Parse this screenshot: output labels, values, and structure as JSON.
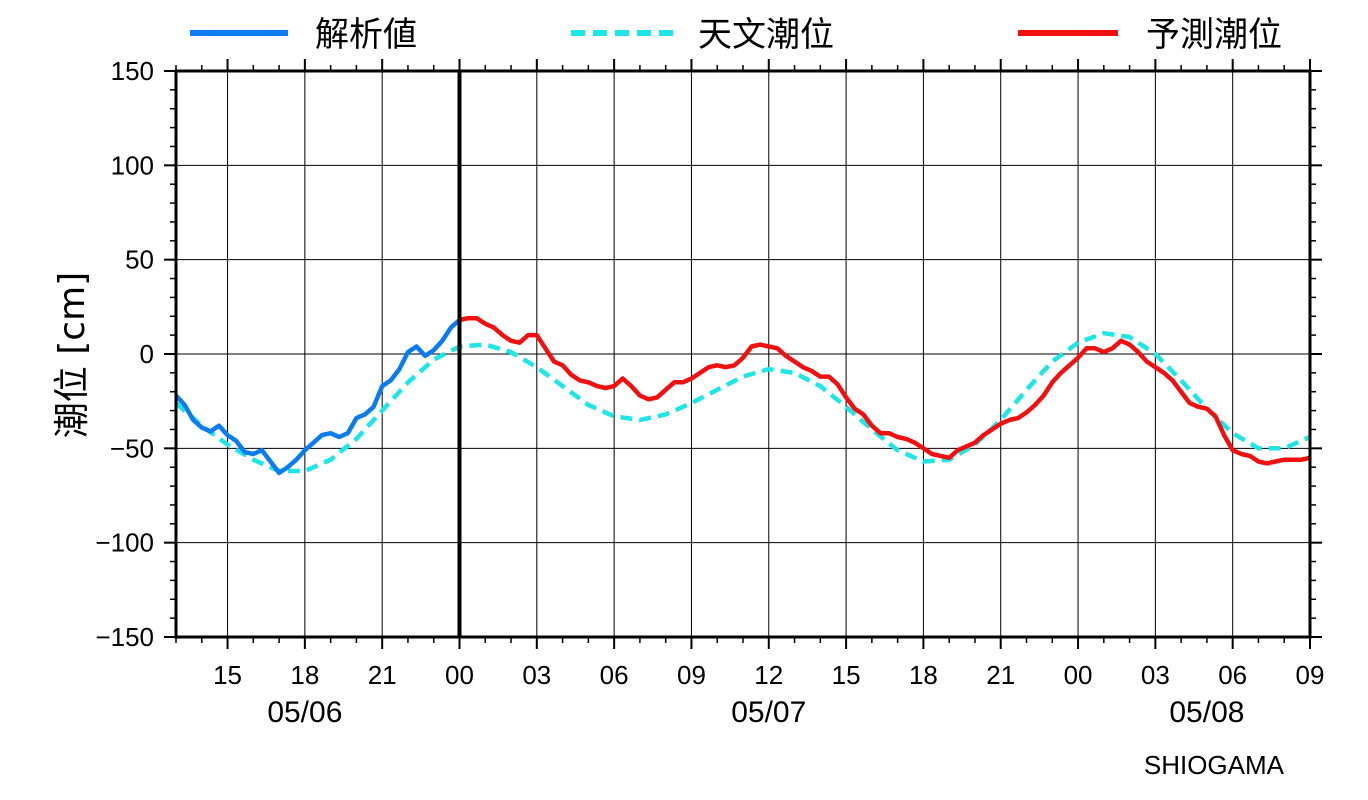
{
  "chart_data": {
    "type": "line",
    "ylabel": "潮位 [cm]",
    "ylim": [
      -150,
      150
    ],
    "y_ticks": [
      -150,
      -100,
      -50,
      0,
      50,
      100,
      150
    ],
    "y_tick_labels": [
      "−150",
      "−100",
      "−50",
      "0",
      "50",
      "100",
      "150"
    ],
    "xlim": [
      "05/06 13:00",
      "05/08 09:00"
    ],
    "x_tick_labels": [
      {
        "x": "05/06 15:00",
        "label": "15"
      },
      {
        "x": "05/06 18:00",
        "label": "18"
      },
      {
        "x": "05/06 21:00",
        "label": "21"
      },
      {
        "x": "05/07 00:00",
        "label": "00"
      },
      {
        "x": "05/07 03:00",
        "label": "03"
      },
      {
        "x": "05/07 06:00",
        "label": "06"
      },
      {
        "x": "05/07 09:00",
        "label": "09"
      },
      {
        "x": "05/07 12:00",
        "label": "12"
      },
      {
        "x": "05/07 15:00",
        "label": "15"
      },
      {
        "x": "05/07 18:00",
        "label": "18"
      },
      {
        "x": "05/07 21:00",
        "label": "21"
      },
      {
        "x": "05/08 00:00",
        "label": "00"
      },
      {
        "x": "05/08 03:00",
        "label": "03"
      },
      {
        "x": "05/08 06:00",
        "label": "06"
      },
      {
        "x": "05/08 09:00",
        "label": "09"
      }
    ],
    "date_labels": [
      {
        "x": "05/06 18:00",
        "label": "05/06"
      },
      {
        "x": "05/07 12:00",
        "label": "05/07"
      },
      {
        "x": "05/08 05:00",
        "label": "05/08"
      }
    ],
    "now_marker": "05/07 00:00",
    "grid": true,
    "legend_position": "top",
    "station": "SHIOGAMA",
    "series": [
      {
        "name": "解析値",
        "color": "#0a7cf0",
        "dash": "solid",
        "points": [
          [
            "05/06 13:00",
            -22
          ],
          [
            "05/06 13:20",
            -27
          ],
          [
            "05/06 13:40",
            -35
          ],
          [
            "05/06 14:00",
            -39
          ],
          [
            "05/06 14:20",
            -41
          ],
          [
            "05/06 14:40",
            -38
          ],
          [
            "05/06 15:00",
            -43
          ],
          [
            "05/06 15:20",
            -46
          ],
          [
            "05/06 15:40",
            -52
          ],
          [
            "05/06 16:00",
            -53
          ],
          [
            "05/06 16:20",
            -51
          ],
          [
            "05/06 16:40",
            -57
          ],
          [
            "05/06 17:00",
            -63
          ],
          [
            "05/06 17:20",
            -60
          ],
          [
            "05/06 17:40",
            -56
          ],
          [
            "05/06 18:00",
            -51
          ],
          [
            "05/06 18:20",
            -47
          ],
          [
            "05/06 18:40",
            -43
          ],
          [
            "05/06 19:00",
            -42
          ],
          [
            "05/06 19:20",
            -44
          ],
          [
            "05/06 19:40",
            -42
          ],
          [
            "05/06 20:00",
            -34
          ],
          [
            "05/06 20:20",
            -32
          ],
          [
            "05/06 20:40",
            -28
          ],
          [
            "05/06 21:00",
            -17
          ],
          [
            "05/06 21:20",
            -14
          ],
          [
            "05/06 21:40",
            -8
          ],
          [
            "05/06 22:00",
            1
          ],
          [
            "05/06 22:20",
            4
          ],
          [
            "05/06 22:40",
            -1
          ],
          [
            "05/06 23:00",
            2
          ],
          [
            "05/06 23:20",
            7
          ],
          [
            "05/06 23:40",
            14
          ],
          [
            "05/07 00:00",
            18
          ]
        ]
      },
      {
        "name": "天文潮位",
        "color": "#1ee6e6",
        "dash": "dashed",
        "points": [
          [
            "05/06 13:00",
            -26
          ],
          [
            "05/06 14:00",
            -38
          ],
          [
            "05/06 15:00",
            -48
          ],
          [
            "05/06 16:00",
            -56
          ],
          [
            "05/06 17:00",
            -62
          ],
          [
            "05/06 18:00",
            -62
          ],
          [
            "05/06 19:00",
            -56
          ],
          [
            "05/06 20:00",
            -45
          ],
          [
            "05/06 21:00",
            -30
          ],
          [
            "05/06 22:00",
            -15
          ],
          [
            "05/06 23:00",
            -3
          ],
          [
            "05/07 00:00",
            4
          ],
          [
            "05/07 01:00",
            5
          ],
          [
            "05/07 02:00",
            1
          ],
          [
            "05/07 03:00",
            -7
          ],
          [
            "05/07 04:00",
            -17
          ],
          [
            "05/07 05:00",
            -27
          ],
          [
            "05/07 06:00",
            -33
          ],
          [
            "05/07 07:00",
            -35
          ],
          [
            "05/07 08:00",
            -32
          ],
          [
            "05/07 09:00",
            -26
          ],
          [
            "05/07 10:00",
            -19
          ],
          [
            "05/07 11:00",
            -12
          ],
          [
            "05/07 12:00",
            -8
          ],
          [
            "05/07 13:00",
            -10
          ],
          [
            "05/07 14:00",
            -17
          ],
          [
            "05/07 15:00",
            -28
          ],
          [
            "05/07 16:00",
            -40
          ],
          [
            "05/07 17:00",
            -51
          ],
          [
            "05/07 18:00",
            -57
          ],
          [
            "05/07 19:00",
            -56
          ],
          [
            "05/07 20:00",
            -48
          ],
          [
            "05/07 21:00",
            -35
          ],
          [
            "05/07 22:00",
            -19
          ],
          [
            "05/07 23:00",
            -4
          ],
          [
            "05/08 00:00",
            6
          ],
          [
            "05/08 01:00",
            11
          ],
          [
            "05/08 02:00",
            9
          ],
          [
            "05/08 03:00",
            0
          ],
          [
            "05/08 04:00",
            -14
          ],
          [
            "05/08 05:00",
            -29
          ],
          [
            "05/08 06:00",
            -42
          ],
          [
            "05/08 07:00",
            -50
          ],
          [
            "05/08 08:00",
            -50
          ],
          [
            "05/08 09:00",
            -44
          ]
        ]
      },
      {
        "name": "予測潮位",
        "color": "#f01010",
        "dash": "solid",
        "points": [
          [
            "05/07 00:00",
            18
          ],
          [
            "05/07 00:20",
            19
          ],
          [
            "05/07 00:40",
            19
          ],
          [
            "05/07 01:00",
            16
          ],
          [
            "05/07 01:20",
            14
          ],
          [
            "05/07 01:40",
            10
          ],
          [
            "05/07 02:00",
            7
          ],
          [
            "05/07 02:20",
            6
          ],
          [
            "05/07 02:40",
            10
          ],
          [
            "05/07 03:00",
            10
          ],
          [
            "05/07 03:20",
            3
          ],
          [
            "05/07 03:40",
            -4
          ],
          [
            "05/07 04:00",
            -6
          ],
          [
            "05/07 04:20",
            -11
          ],
          [
            "05/07 04:40",
            -14
          ],
          [
            "05/07 05:00",
            -15
          ],
          [
            "05/07 05:20",
            -17
          ],
          [
            "05/07 05:40",
            -18
          ],
          [
            "05/07 06:00",
            -17
          ],
          [
            "05/07 06:20",
            -13
          ],
          [
            "05/07 06:40",
            -17
          ],
          [
            "05/07 07:00",
            -22
          ],
          [
            "05/07 07:20",
            -24
          ],
          [
            "05/07 07:40",
            -23
          ],
          [
            "05/07 08:00",
            -19
          ],
          [
            "05/07 08:20",
            -15
          ],
          [
            "05/07 08:40",
            -15
          ],
          [
            "05/07 09:00",
            -13
          ],
          [
            "05/07 09:20",
            -10
          ],
          [
            "05/07 09:40",
            -7
          ],
          [
            "05/07 10:00",
            -6
          ],
          [
            "05/07 10:20",
            -7
          ],
          [
            "05/07 10:40",
            -6
          ],
          [
            "05/07 11:00",
            -2
          ],
          [
            "05/07 11:20",
            4
          ],
          [
            "05/07 11:40",
            5
          ],
          [
            "05/07 12:00",
            4
          ],
          [
            "05/07 12:20",
            3
          ],
          [
            "05/07 12:40",
            -1
          ],
          [
            "05/07 13:00",
            -4
          ],
          [
            "05/07 13:20",
            -7
          ],
          [
            "05/07 13:40",
            -9
          ],
          [
            "05/07 14:00",
            -12
          ],
          [
            "05/07 14:20",
            -12
          ],
          [
            "05/07 14:40",
            -16
          ],
          [
            "05/07 15:00",
            -23
          ],
          [
            "05/07 15:20",
            -29
          ],
          [
            "05/07 15:40",
            -32
          ],
          [
            "05/07 16:00",
            -38
          ],
          [
            "05/07 16:20",
            -42
          ],
          [
            "05/07 16:40",
            -42
          ],
          [
            "05/07 17:00",
            -44
          ],
          [
            "05/07 17:20",
            -45
          ],
          [
            "05/07 17:40",
            -47
          ],
          [
            "05/07 18:00",
            -50
          ],
          [
            "05/07 18:20",
            -53
          ],
          [
            "05/07 18:40",
            -54
          ],
          [
            "05/07 19:00",
            -55
          ],
          [
            "05/07 19:20",
            -51
          ],
          [
            "05/07 19:40",
            -49
          ],
          [
            "05/07 20:00",
            -47
          ],
          [
            "05/07 20:20",
            -43
          ],
          [
            "05/07 20:40",
            -40
          ],
          [
            "05/07 21:00",
            -37
          ],
          [
            "05/07 21:20",
            -35
          ],
          [
            "05/07 21:40",
            -34
          ],
          [
            "05/07 22:00",
            -31
          ],
          [
            "05/07 22:20",
            -27
          ],
          [
            "05/07 22:40",
            -22
          ],
          [
            "05/07 23:00",
            -15
          ],
          [
            "05/07 23:20",
            -10
          ],
          [
            "05/07 23:40",
            -6
          ],
          [
            "05/08 00:00",
            -2
          ],
          [
            "05/08 00:20",
            3
          ],
          [
            "05/08 00:40",
            3
          ],
          [
            "05/08 01:00",
            1
          ],
          [
            "05/08 01:20",
            3
          ],
          [
            "05/08 01:40",
            7
          ],
          [
            "05/08 02:00",
            5
          ],
          [
            "05/08 02:20",
            1
          ],
          [
            "05/08 02:40",
            -4
          ],
          [
            "05/08 03:00",
            -7
          ],
          [
            "05/08 03:20",
            -10
          ],
          [
            "05/08 03:40",
            -14
          ],
          [
            "05/08 04:00",
            -20
          ],
          [
            "05/08 04:20",
            -26
          ],
          [
            "05/08 04:40",
            -28
          ],
          [
            "05/08 05:00",
            -29
          ],
          [
            "05/08 05:20",
            -33
          ],
          [
            "05/08 05:40",
            -43
          ],
          [
            "05/08 06:00",
            -51
          ],
          [
            "05/08 06:20",
            -53
          ],
          [
            "05/08 06:40",
            -54
          ],
          [
            "05/08 07:00",
            -57
          ],
          [
            "05/08 07:20",
            -58
          ],
          [
            "05/08 07:40",
            -57
          ],
          [
            "05/08 08:00",
            -56
          ],
          [
            "05/08 08:20",
            -56
          ],
          [
            "05/08 08:40",
            -56
          ],
          [
            "05/08 09:00",
            -55
          ]
        ]
      }
    ]
  }
}
